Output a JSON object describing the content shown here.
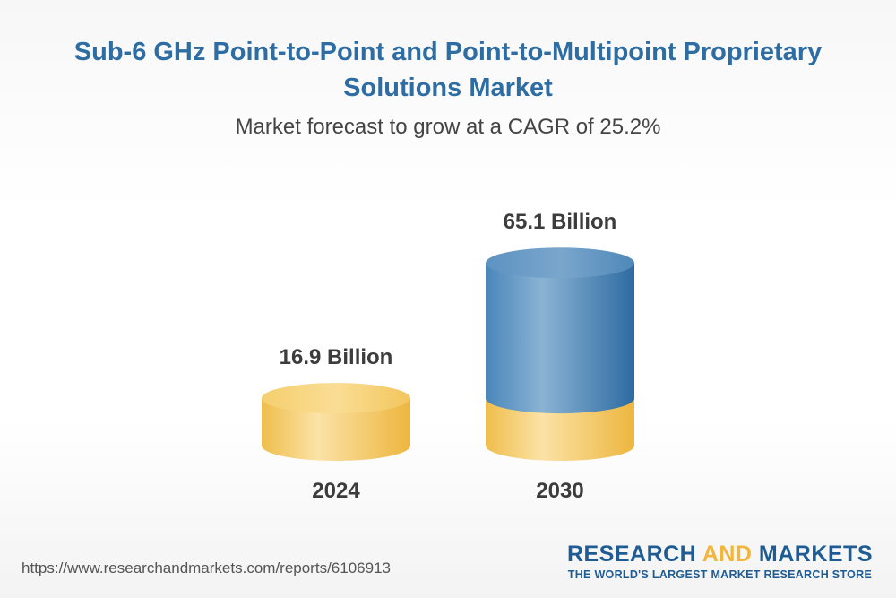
{
  "header": {
    "title_line1": "Sub-6 GHz Point-to-Point and Point-to-Multipoint Proprietary",
    "title_line2": "Solutions Market",
    "subtitle": "Market forecast to grow at a CAGR of 25.2%"
  },
  "chart_data": {
    "type": "bar",
    "style": "3d-cylinder",
    "categories": [
      "2024",
      "2030"
    ],
    "values": [
      16.9,
      65.1
    ],
    "value_labels": [
      "16.9 Billion",
      "65.1 Billion"
    ],
    "title": "Sub-6 GHz Point-to-Point and Point-to-Multipoint Proprietary Solutions Market",
    "subtitle": "Market forecast to grow at a CAGR of 25.2%",
    "xlabel": "",
    "ylabel": "",
    "grid": false,
    "colors": {
      "base": "#f2c14e",
      "growth": "#3f7fb5"
    }
  },
  "footer": {
    "url": "https://www.researchandmarkets.com/reports/6106913",
    "brand_word1": "RESEARCH",
    "brand_word2": "AND",
    "brand_word3": "MARKETS",
    "brand_tagline": "THE WORLD'S LARGEST MARKET RESEARCH STORE"
  }
}
